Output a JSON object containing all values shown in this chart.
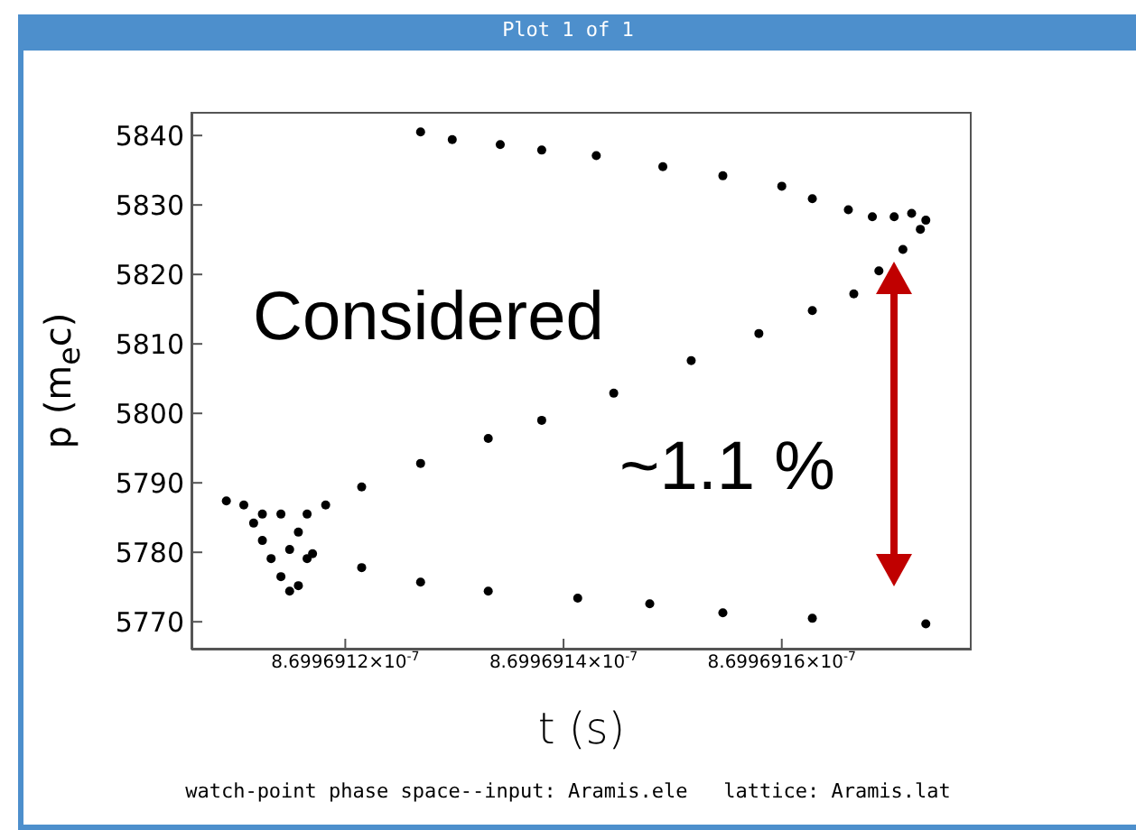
{
  "chart_data": {
    "type": "scatter",
    "xlabel": "t (s)",
    "ylabel": "p (m$_{e}$c)",
    "annotations": [
      "Plot 1 of 1",
      "Considered",
      "~1.1 %",
      "watch-point phase space--input: Aramis.ele   lattice: Aramis.lat"
    ],
    "x": [
      8.699691091e-07,
      8.699691107e-07,
      8.699691116e-07,
      8.699691124e-07,
      8.699691132e-07,
      8.699691141e-07,
      8.699691149e-07,
      8.699691157e-07,
      8.699691165e-07,
      8.699691157e-07,
      8.699691165e-07,
      8.699691141e-07,
      8.699691124e-07,
      8.699691149e-07,
      8.699691182e-07,
      8.699691215e-07,
      8.699691269e-07,
      8.699691331e-07,
      8.69969138e-07,
      8.699691446e-07,
      8.699691517e-07,
      8.699691579e-07,
      8.699691628e-07,
      8.699691666e-07,
      8.699691689e-07,
      8.699691711e-07,
      8.699691727e-07,
      8.699691732e-07,
      8.699691719e-07,
      8.699691703e-07,
      8.699691683e-07,
      8.699691661e-07,
      8.699691628e-07,
      8.6996916e-07,
      8.699691546e-07,
      8.699691491e-07,
      8.69969143e-07,
      8.69969138e-07,
      8.699691342e-07,
      8.699691298e-07,
      8.699691269e-07,
      8.69969117e-07,
      8.699691215e-07,
      8.699691269e-07,
      8.699691331e-07,
      8.699691413e-07,
      8.699691479e-07,
      8.699691546e-07,
      8.699691628e-07,
      8.699691732e-07
    ],
    "values": [
      5787.4,
      5786.8,
      5784.2,
      5781.7,
      5779.1,
      5776.5,
      5774.4,
      5775.2,
      5779.1,
      5782.9,
      5785.5,
      5785.5,
      5785.5,
      5780.4,
      5786.8,
      5789.4,
      5792.8,
      5796.4,
      5799.0,
      5802.9,
      5807.6,
      5811.5,
      5814.8,
      5817.2,
      5820.5,
      5823.6,
      5826.5,
      5827.8,
      5828.8,
      5828.3,
      5828.3,
      5829.3,
      5830.9,
      5832.7,
      5834.2,
      5835.5,
      5837.1,
      5837.9,
      5838.7,
      5839.4,
      5840.5,
      5779.8,
      5777.8,
      5775.7,
      5774.4,
      5773.4,
      5772.6,
      5771.3,
      5770.5,
      5769.7
    ],
    "color": "#000000",
    "marker": "circle",
    "xlim": [
      8.699691059e-07,
      8.699691774e-07
    ],
    "xticks": [
      {
        "value": 8.6996912e-07,
        "label": "8.6996912×10$^{-7}$"
      },
      {
        "value": 8.6996914e-07,
        "label": "8.6996914×10$^{-7}$"
      },
      {
        "value": 8.6996916e-07,
        "label": "8.6996916×10$^{-7}$"
      }
    ],
    "ylim": [
      5766,
      5843.4
    ],
    "yticks": [
      5770,
      5780,
      5790,
      5800,
      5810,
      5820,
      5830,
      5840
    ],
    "grid": false
  }
}
